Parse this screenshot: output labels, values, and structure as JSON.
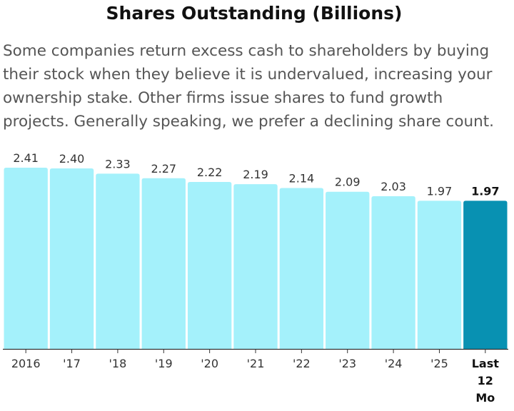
{
  "chart_data": {
    "type": "bar",
    "title": "Shares Outstanding (Billions)",
    "subtitle": "Some companies return excess cash to shareholders by buying their stock when they believe it is undervalued, increasing your ownership stake. Other firms issue shares to fund growth projects. Generally speaking, we prefer a declining share count.",
    "categories": [
      "2016",
      "'17",
      "'18",
      "'19",
      "'20",
      "'21",
      "'22",
      "'23",
      "'24",
      "'25",
      "Last 12 Mo"
    ],
    "category_lines": [
      [
        "2016"
      ],
      [
        "'17"
      ],
      [
        "'18"
      ],
      [
        "'19"
      ],
      [
        "'20"
      ],
      [
        "'21"
      ],
      [
        "'22"
      ],
      [
        "'23"
      ],
      [
        "'24"
      ],
      [
        "'25"
      ],
      [
        "Last",
        "12",
        "Mo"
      ]
    ],
    "values": [
      2.41,
      2.4,
      2.33,
      2.27,
      2.22,
      2.19,
      2.14,
      2.09,
      2.03,
      1.97,
      1.97
    ],
    "value_labels": [
      "2.41",
      "2.40",
      "2.33",
      "2.27",
      "2.22",
      "2.19",
      "2.14",
      "2.09",
      "2.03",
      "1.97",
      "1.97"
    ],
    "highlight_index": 10,
    "ylim": [
      0,
      2.41
    ],
    "xlabel": "",
    "ylabel": "",
    "grid": false,
    "colors": {
      "bar": "#a4f1fb",
      "highlight": "#0891b2",
      "axis": "#333333"
    }
  }
}
